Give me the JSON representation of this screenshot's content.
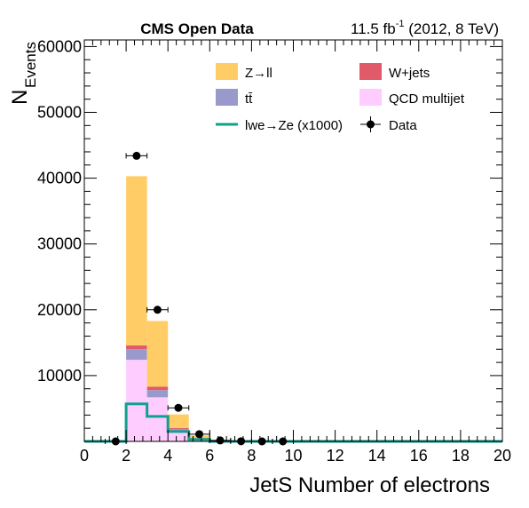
{
  "header": {
    "left": "CMS Open Data",
    "lumi": "11.5 fb",
    "lumi_sup": "-1",
    "energy": " (2012, 8 TeV)"
  },
  "chart_data": {
    "type": "bar",
    "stacked": true,
    "xlabel": "JetS Number of electrons",
    "ylabel_main": "N",
    "ylabel_sub": "Events",
    "xlim": [
      0,
      20
    ],
    "ylim": [
      0,
      61000
    ],
    "x_ticks": [
      0,
      2,
      4,
      6,
      8,
      10,
      12,
      14,
      16,
      18,
      20
    ],
    "y_ticks": [
      10000,
      20000,
      30000,
      40000,
      50000,
      60000
    ],
    "bin_edges": [
      0,
      1,
      2,
      3,
      4,
      5,
      6,
      7,
      8,
      9,
      10,
      11,
      12,
      13,
      14,
      15,
      16,
      17,
      18,
      19,
      20
    ],
    "series": [
      {
        "name": "QCD multijet",
        "color": "#ffccff",
        "values": [
          0,
          0,
          12400,
          6700,
          1400,
          300,
          0,
          0,
          0,
          0,
          0,
          0,
          0,
          0,
          0,
          0,
          0,
          0,
          0,
          0
        ]
      },
      {
        "name": "tt̄",
        "color": "#9999cc",
        "values": [
          0,
          0,
          1600,
          1100,
          500,
          100,
          0,
          0,
          0,
          0,
          0,
          0,
          0,
          0,
          0,
          0,
          0,
          0,
          0,
          0
        ]
      },
      {
        "name": "W+jets",
        "color": "#e05a6a",
        "values": [
          0,
          0,
          600,
          500,
          150,
          30,
          0,
          0,
          0,
          0,
          0,
          0,
          0,
          0,
          0,
          0,
          0,
          0,
          0,
          0
        ]
      },
      {
        "name": "Z→ll",
        "color": "#ffcc66",
        "values": [
          0,
          0,
          25700,
          10000,
          2050,
          470,
          100,
          0,
          0,
          0,
          0,
          0,
          0,
          0,
          0,
          0,
          0,
          0,
          0,
          0
        ]
      }
    ],
    "signal": {
      "name": "lwe→Ze (x1000)",
      "color": "#11a08f",
      "values": [
        0,
        0,
        5700,
        3800,
        1500,
        300,
        0,
        0,
        0,
        0,
        0,
        0,
        0,
        0,
        0,
        0,
        0,
        0,
        0,
        0
      ]
    },
    "data": {
      "name": "Data",
      "points": [
        {
          "x": 1.5,
          "y": 0
        },
        {
          "x": 2.5,
          "y": 43400
        },
        {
          "x": 3.5,
          "y": 20000
        },
        {
          "x": 4.5,
          "y": 5100
        },
        {
          "x": 5.5,
          "y": 1100
        },
        {
          "x": 6.5,
          "y": 150
        },
        {
          "x": 7.5,
          "y": 20
        },
        {
          "x": 8.5,
          "y": 0
        },
        {
          "x": 9.5,
          "y": 0
        }
      ]
    },
    "legend": [
      {
        "label": "Z→ll",
        "kind": "fill",
        "color": "#ffcc66"
      },
      {
        "label": "W+jets",
        "kind": "fill",
        "color": "#e05a6a"
      },
      {
        "label": "tt̄",
        "kind": "fill",
        "color": "#9999cc"
      },
      {
        "label": "QCD multijet",
        "kind": "fill",
        "color": "#ffccff"
      },
      {
        "label": "lwe→Ze (x1000)",
        "kind": "line",
        "color": "#11a08f"
      },
      {
        "label": "Data",
        "kind": "point",
        "color": "#000000"
      }
    ],
    "legend_position": "top-right"
  }
}
